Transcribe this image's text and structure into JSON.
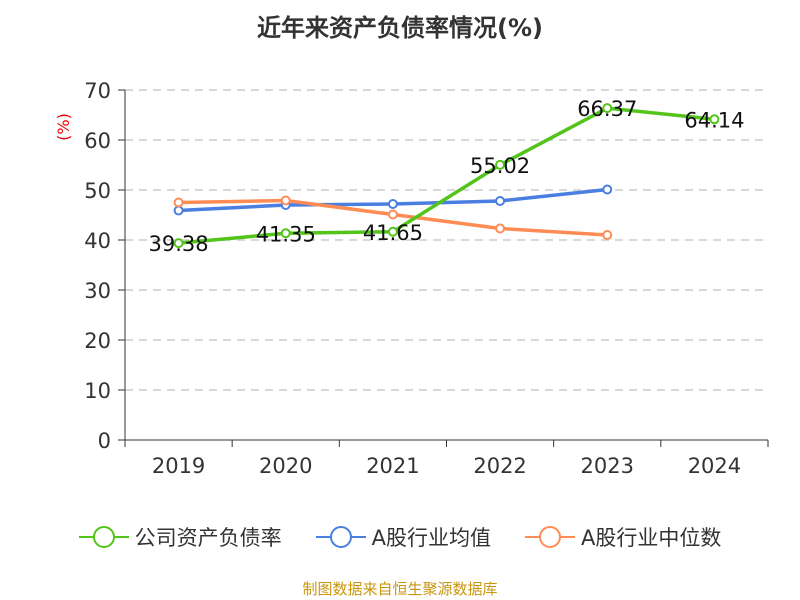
{
  "chart_data": {
    "type": "line",
    "title": "近年来资产负债率情况(%)",
    "ylabel": "(%)",
    "categories": [
      "2019",
      "2020",
      "2021",
      "2022",
      "2023",
      "2024"
    ],
    "ylim": [
      0,
      70
    ],
    "yticks": [
      0,
      10,
      20,
      30,
      40,
      50,
      60,
      70
    ],
    "grid": true,
    "legend_position": "bottom",
    "series": [
      {
        "name": "公司资产负债率",
        "color": "#52c41a",
        "values": [
          39.38,
          41.35,
          41.65,
          55.02,
          66.37,
          64.14
        ],
        "labels": [
          "39.38",
          "41.35",
          "41.65",
          "55.02",
          "66.37",
          "64.14"
        ]
      },
      {
        "name": "A股行业均值",
        "color": "#4a7ee0",
        "values": [
          45.9,
          47.0,
          47.2,
          47.8,
          50.1,
          null
        ]
      },
      {
        "name": "A股行业中位数",
        "color": "#ff8c55",
        "values": [
          47.5,
          47.9,
          45.1,
          42.3,
          41.0,
          null
        ]
      }
    ]
  },
  "source": "制图数据来自恒生聚源数据库"
}
